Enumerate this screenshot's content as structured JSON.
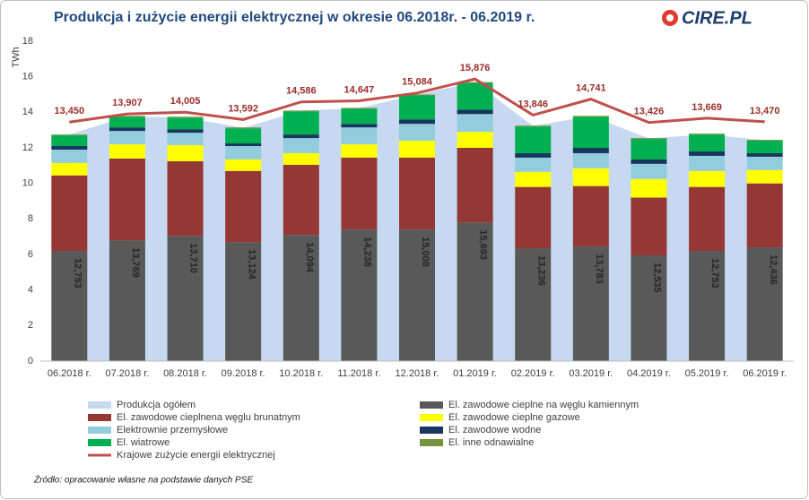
{
  "logo": "CIRE.PL",
  "chart_data": {
    "type": "bar",
    "title": "Produkcja i zużycie energii elektrycznej w okresie 06.2018r. - 06.2019 r.",
    "ylabel": "TWh",
    "source": "Źródło: opracowanie własne na podstawie danych PSE",
    "categories": [
      "06.2018 r.",
      "07.2018 r.",
      "08.2018 r.",
      "09.2018 r.",
      "10.2018 r.",
      "11.2018 r.",
      "12.2018 r.",
      "01.2019 r.",
      "02.2019 r.",
      "03.2019 r.",
      "04.2019 r.",
      "05.2019 r.",
      "06.2019 r."
    ],
    "ylim": [
      0,
      18
    ],
    "yticks": [
      0,
      2,
      4,
      6,
      8,
      10,
      12,
      14,
      16,
      18
    ],
    "grid": false,
    "series": [
      {
        "name": "Produkcja ogółem",
        "type": "area",
        "color": "#c6d9f1",
        "values": [
          12.753,
          13.769,
          13.71,
          13.124,
          14.094,
          14.238,
          15.008,
          15.693,
          13.236,
          13.783,
          12.535,
          12.753,
          12.436
        ],
        "value_labels": [
          "12,753",
          "13,769",
          "13,710",
          "13,124",
          "14,094",
          "14,238",
          "15,008",
          "15,693",
          "13,236",
          "13,783",
          "12,535",
          "12,753",
          "12,436"
        ]
      },
      {
        "name": "El. zawodowe cieplne na węglu kamiennym",
        "type": "bar",
        "color": "#595959",
        "values": [
          6.2,
          6.8,
          7.05,
          6.7,
          7.1,
          7.4,
          7.4,
          7.8,
          6.35,
          6.45,
          5.95,
          6.2,
          6.4
        ]
      },
      {
        "name": "El. zawodowe cieplnena węglu brunatnym",
        "type": "bar",
        "color": "#953735",
        "values": [
          4.25,
          4.6,
          4.2,
          4.0,
          3.95,
          4.05,
          4.05,
          4.2,
          3.45,
          3.4,
          3.25,
          3.6,
          3.6
        ]
      },
      {
        "name": "El. zawodowe cieplne gazowe",
        "type": "bar",
        "color": "#ffff00",
        "values": [
          0.7,
          0.8,
          0.9,
          0.65,
          0.65,
          0.75,
          0.95,
          0.9,
          0.85,
          1.0,
          1.05,
          0.9,
          0.75
        ]
      },
      {
        "name": "Elektrownie przemysłowe",
        "type": "bar",
        "color": "#93cddd",
        "values": [
          0.75,
          0.75,
          0.7,
          0.75,
          0.85,
          0.95,
          0.95,
          1.0,
          0.8,
          0.85,
          0.85,
          0.85,
          0.75
        ]
      },
      {
        "name": "El. zawodowe wodne",
        "type": "bar",
        "color": "#17375e",
        "values": [
          0.2,
          0.2,
          0.2,
          0.15,
          0.2,
          0.2,
          0.25,
          0.25,
          0.25,
          0.3,
          0.25,
          0.25,
          0.2
        ]
      },
      {
        "name": "El. wiatrowe",
        "type": "bar",
        "color": "#00b050",
        "values": [
          0.6,
          0.6,
          0.65,
          0.85,
          1.3,
          0.85,
          1.35,
          1.5,
          1.5,
          1.75,
          1.15,
          0.95,
          0.7
        ]
      },
      {
        "name": "El. inne odnawialne",
        "type": "bar",
        "color": "#77933c",
        "values": [
          0.05,
          0.05,
          0.05,
          0.05,
          0.05,
          0.05,
          0.05,
          0.05,
          0.05,
          0.05,
          0.05,
          0.05,
          0.05
        ]
      },
      {
        "name": "Krajowe zużycie energii elektrycznej",
        "type": "line",
        "color": "#c0504d",
        "values": [
          13.45,
          13.907,
          14.005,
          13.592,
          14.586,
          14.647,
          15.084,
          15.876,
          13.846,
          14.741,
          13.426,
          13.669,
          13.47
        ],
        "value_labels": [
          "13,450",
          "13,907",
          "14,005",
          "13,592",
          "14,586",
          "14,647",
          "15,084",
          "15,876",
          "13,846",
          "14,741",
          "13,426",
          "13,669",
          "13,470"
        ]
      }
    ]
  }
}
